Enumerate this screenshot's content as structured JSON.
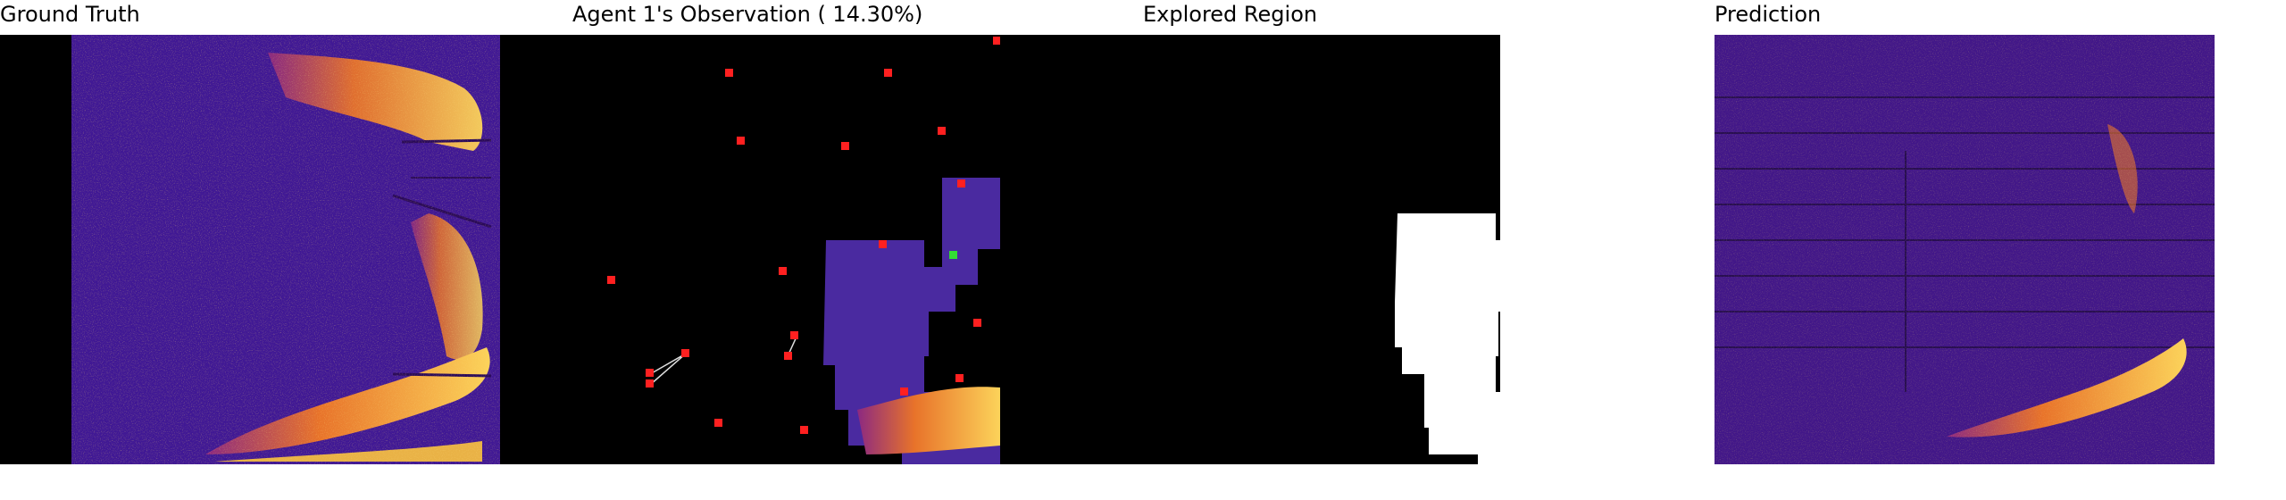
{
  "titles": {
    "ground_truth": "Ground Truth",
    "observation": "Agent 1's Observation ( 14.30%)",
    "explored": "Explored Region",
    "prediction": "Prediction"
  },
  "colors": {
    "background": "#000000",
    "heat_low": "#3b0f70",
    "heat_mid": "#8c2981",
    "heat_high": "#fcfdbf",
    "hot": "#f1a340",
    "agent_marker": "#ff2020",
    "self_marker": "#33dd33",
    "explored": "#ffffff"
  }
}
